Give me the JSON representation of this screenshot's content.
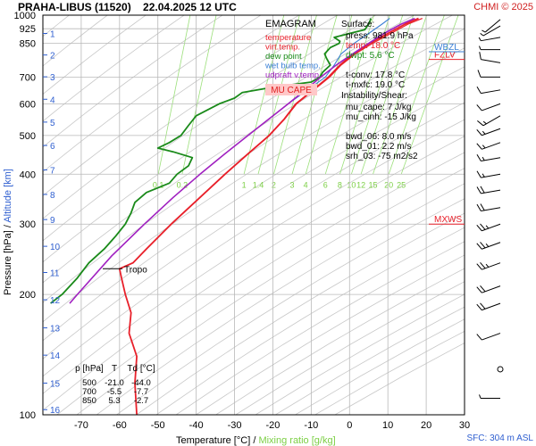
{
  "header": {
    "title": "PRAHA-LIBUS (11520)    22.04.2025 12 UTC",
    "copyright": "CHMI © 2025"
  },
  "chart_data": {
    "type": "line",
    "subtype": "emagram",
    "grid": true,
    "pressure_axis": {
      "label": "Pressure [hPa]",
      "scale": "log",
      "range": [
        1000,
        100
      ],
      "ticks": [
        100,
        200,
        300,
        400,
        500,
        600,
        700,
        850,
        925,
        1000
      ]
    },
    "altitude_axis": {
      "label": "Altitude [km]",
      "ticks": [
        {
          "km": 1,
          "p": 900
        },
        {
          "km": 2,
          "p": 795
        },
        {
          "km": 3,
          "p": 701
        },
        {
          "km": 4,
          "p": 616
        },
        {
          "km": 5,
          "p": 540
        },
        {
          "km": 6,
          "p": 472
        },
        {
          "km": 7,
          "p": 410
        },
        {
          "km": 8,
          "p": 356
        },
        {
          "km": 9,
          "p": 308
        },
        {
          "km": 10,
          "p": 264
        },
        {
          "km": 11,
          "p": 227
        },
        {
          "km": 12,
          "p": 194
        },
        {
          "km": 13,
          "p": 165
        },
        {
          "km": 14,
          "p": 141
        },
        {
          "km": 15,
          "p": 120
        },
        {
          "km": 16,
          "p": 103
        }
      ]
    },
    "temperature_axis": {
      "label": "Temperature [°C]",
      "range": [
        -80,
        30
      ],
      "ticks": [
        -70,
        -60,
        -50,
        -40,
        -30,
        -20,
        -10,
        0,
        10,
        20,
        30
      ]
    },
    "mixing_ratio": {
      "label": "Mixing ratio [g/kg]",
      "values": [
        0.1,
        0.2,
        1,
        1.4,
        2,
        3,
        4,
        6,
        8,
        10,
        12,
        15,
        20,
        25
      ],
      "tick_labels": [
        "0.1",
        "0.2",
        "1",
        "1.4",
        "2",
        "3",
        "4",
        "6",
        "8",
        "10",
        "12",
        "15",
        "20",
        "25"
      ]
    },
    "legend": {
      "title": "EMAGRAM",
      "position": "top-center",
      "items": [
        {
          "label": "temperature",
          "color": "#e8202a"
        },
        {
          "label": "virt.temp.",
          "color": "#e8202a"
        },
        {
          "label": "dew point",
          "color": "#1a8a1a"
        },
        {
          "label": "wet bulb temp.",
          "color": "#3a7fd5"
        },
        {
          "label": "udpraft v.temp.",
          "color": "#a020c0"
        }
      ],
      "button": "MU CAPE"
    },
    "series": [
      {
        "name": "temperature",
        "color": "#e8202a",
        "points": [
          [
            981.9,
            18.0
          ],
          [
            950,
            14.5
          ],
          [
            900,
            10.0
          ],
          [
            850,
            5.3
          ],
          [
            800,
            1.0
          ],
          [
            750,
            -2.5
          ],
          [
            700,
            -5.5
          ],
          [
            650,
            -9.5
          ],
          [
            600,
            -14.0
          ],
          [
            550,
            -17.0
          ],
          [
            500,
            -21.0
          ],
          [
            450,
            -26.5
          ],
          [
            400,
            -32.5
          ],
          [
            350,
            -39.0
          ],
          [
            300,
            -46.5
          ],
          [
            260,
            -53.0
          ],
          [
            240,
            -56.5
          ],
          [
            232,
            -60.0
          ],
          [
            220,
            -59.5
          ],
          [
            200,
            -58.5
          ],
          [
            180,
            -57.0
          ],
          [
            160,
            -57.5
          ],
          [
            140,
            -55.5
          ],
          [
            120,
            -56.0
          ],
          [
            100,
            -55.5
          ]
        ]
      },
      {
        "name": "virt.temp.",
        "color": "#e8202a",
        "points": [
          [
            981.9,
            19.0
          ],
          [
            950,
            15.3
          ],
          [
            900,
            10.8
          ],
          [
            850,
            6.0
          ],
          [
            800,
            1.5
          ],
          [
            750,
            -2.2
          ],
          [
            700,
            -5.2
          ],
          [
            650,
            -9.3
          ],
          [
            600,
            -13.8
          ],
          [
            550,
            -16.9
          ],
          [
            500,
            -20.9
          ],
          [
            450,
            -26.4
          ],
          [
            400,
            -32.4
          ],
          [
            350,
            -39.0
          ],
          [
            300,
            -46.5
          ],
          [
            260,
            -53.0
          ],
          [
            240,
            -56.5
          ],
          [
            232,
            -60.0
          ]
        ]
      },
      {
        "name": "dew point",
        "color": "#1a8a1a",
        "points": [
          [
            981.9,
            5.6
          ],
          [
            950,
            5.0
          ],
          [
            920,
            4.0
          ],
          [
            900,
            0.0
          ],
          [
            880,
            -4.0
          ],
          [
            860,
            -2.5
          ],
          [
            850,
            -2.7
          ],
          [
            830,
            -5.0
          ],
          [
            800,
            -6.5
          ],
          [
            780,
            -6.0
          ],
          [
            750,
            -5.0
          ],
          [
            720,
            -7.0
          ],
          [
            700,
            -7.7
          ],
          [
            680,
            -10.0
          ],
          [
            660,
            -20.0
          ],
          [
            640,
            -28.0
          ],
          [
            620,
            -30.0
          ],
          [
            600,
            -34.0
          ],
          [
            560,
            -40.0
          ],
          [
            530,
            -42.0
          ],
          [
            500,
            -44.0
          ],
          [
            480,
            -47.0
          ],
          [
            465,
            -50.0
          ],
          [
            455,
            -46.0
          ],
          [
            440,
            -41.0
          ],
          [
            420,
            -42.0
          ],
          [
            400,
            -45.0
          ],
          [
            380,
            -47.0
          ],
          [
            360,
            -53.0
          ],
          [
            340,
            -56.0
          ],
          [
            320,
            -57.0
          ],
          [
            300,
            -58.5
          ],
          [
            280,
            -61.0
          ],
          [
            260,
            -64.0
          ],
          [
            240,
            -68.0
          ],
          [
            220,
            -71.0
          ],
          [
            200,
            -75.0
          ],
          [
            190,
            -78.0
          ]
        ]
      },
      {
        "name": "wet bulb temp.",
        "color": "#3a7fd5",
        "points": [
          [
            981.9,
            10.5
          ],
          [
            950,
            8.5
          ],
          [
            900,
            5.0
          ],
          [
            850,
            1.2
          ],
          [
            800,
            -2.2
          ],
          [
            750,
            -4.0
          ],
          [
            700,
            -6.3
          ],
          [
            650,
            -11.0
          ],
          [
            600,
            -16.0
          ]
        ]
      },
      {
        "name": "udpraft v.temp.",
        "color": "#a020c0",
        "points": [
          [
            981.9,
            17.0
          ],
          [
            950,
            13.5
          ],
          [
            900,
            9.0
          ],
          [
            850,
            5.0
          ],
          [
            800,
            0.8
          ],
          [
            750,
            -3.5
          ],
          [
            700,
            -7.5
          ],
          [
            650,
            -11.5
          ],
          [
            600,
            -16.0
          ],
          [
            550,
            -21.0
          ],
          [
            500,
            -26.5
          ],
          [
            450,
            -32.5
          ],
          [
            400,
            -39.0
          ],
          [
            350,
            -46.0
          ],
          [
            300,
            -53.5
          ],
          [
            250,
            -62.0
          ],
          [
            200,
            -71.0
          ],
          [
            190,
            -73.0
          ]
        ]
      }
    ],
    "markers": [
      {
        "label": "Tropo",
        "p": 232,
        "color": "#000000"
      },
      {
        "label": "MXWS",
        "p": 300,
        "color": "#e8202a"
      },
      {
        "label": "FZLV",
        "p": 775,
        "color": "#e8202a"
      },
      {
        "label": "WBZL",
        "p": 810,
        "color": "#3a7fd5"
      }
    ],
    "stats_table": {
      "headers": [
        "p [hPa]",
        "T",
        "Td [°C]"
      ],
      "rows": [
        [
          "500",
          "-21.0",
          "-44.0"
        ],
        [
          "700",
          "-5.5",
          "-7.7"
        ],
        [
          "850",
          "5.3",
          "-2.7"
        ]
      ]
    },
    "surface": {
      "title": "Surface:",
      "lines": [
        {
          "text": "press: 981.9 hPa",
          "color": "#000000"
        },
        {
          "text": "temp: 18.0 °C",
          "color": "#e8202a"
        },
        {
          "text": "dwpt: 5.6 °C",
          "color": "#1a8a1a"
        },
        {
          "text": "",
          "color": "#000000"
        },
        {
          "text": "t-conv: 17.8 °C",
          "color": "#000000"
        },
        {
          "text": "t-mxfc: 19.0 °C",
          "color": "#000000"
        }
      ]
    },
    "instability": {
      "title": "Instability/Shear:",
      "lines": [
        "mu_cape: 7 J/kg",
        "mu_cinh: -15 J/kg",
        "",
        "bwd_06: 8.0 m/s",
        "bwd_01: 2.2 m/s",
        "srh_03: -75 m2/s2"
      ]
    },
    "winds": [
      {
        "p": 110,
        "dir": 270,
        "spd": 5
      },
      {
        "p": 130,
        "dir": 240,
        "spd": 0
      },
      {
        "p": 160,
        "dir": 250,
        "spd": 10
      },
      {
        "p": 190,
        "dir": 250,
        "spd": 20
      },
      {
        "p": 210,
        "dir": 250,
        "spd": 20
      },
      {
        "p": 240,
        "dir": 250,
        "spd": 25
      },
      {
        "p": 270,
        "dir": 250,
        "spd": 25
      },
      {
        "p": 300,
        "dir": 250,
        "spd": 25
      },
      {
        "p": 330,
        "dir": 260,
        "spd": 20
      },
      {
        "p": 365,
        "dir": 260,
        "spd": 20
      },
      {
        "p": 400,
        "dir": 260,
        "spd": 15
      },
      {
        "p": 440,
        "dir": 260,
        "spd": 15
      },
      {
        "p": 480,
        "dir": 250,
        "spd": 15
      },
      {
        "p": 520,
        "dir": 250,
        "spd": 15
      },
      {
        "p": 560,
        "dir": 240,
        "spd": 15
      },
      {
        "p": 600,
        "dir": 250,
        "spd": 10
      },
      {
        "p": 650,
        "dir": 260,
        "spd": 10
      },
      {
        "p": 700,
        "dir": 270,
        "spd": 10
      },
      {
        "p": 760,
        "dir": 280,
        "spd": 10
      },
      {
        "p": 820,
        "dir": 270,
        "spd": 5
      },
      {
        "p": 880,
        "dir": 260,
        "spd": 5
      },
      {
        "p": 940,
        "dir": 240,
        "spd": 5
      },
      {
        "p": 975,
        "dir": 230,
        "spd": 5
      }
    ],
    "sfc_note": "SFC: 304 m ASL"
  },
  "colors": {
    "grid": "#b8b8b8",
    "adiabat": "#c8c8c8",
    "mixing_ratio_line": "#9be07a",
    "mixing_ratio_label": "#7ccf45",
    "altitude_label": "#2f5fd0",
    "header_red": "#d02020",
    "cape_button_bg": "#ffc8c8",
    "cape_button_text": "#e02020"
  }
}
